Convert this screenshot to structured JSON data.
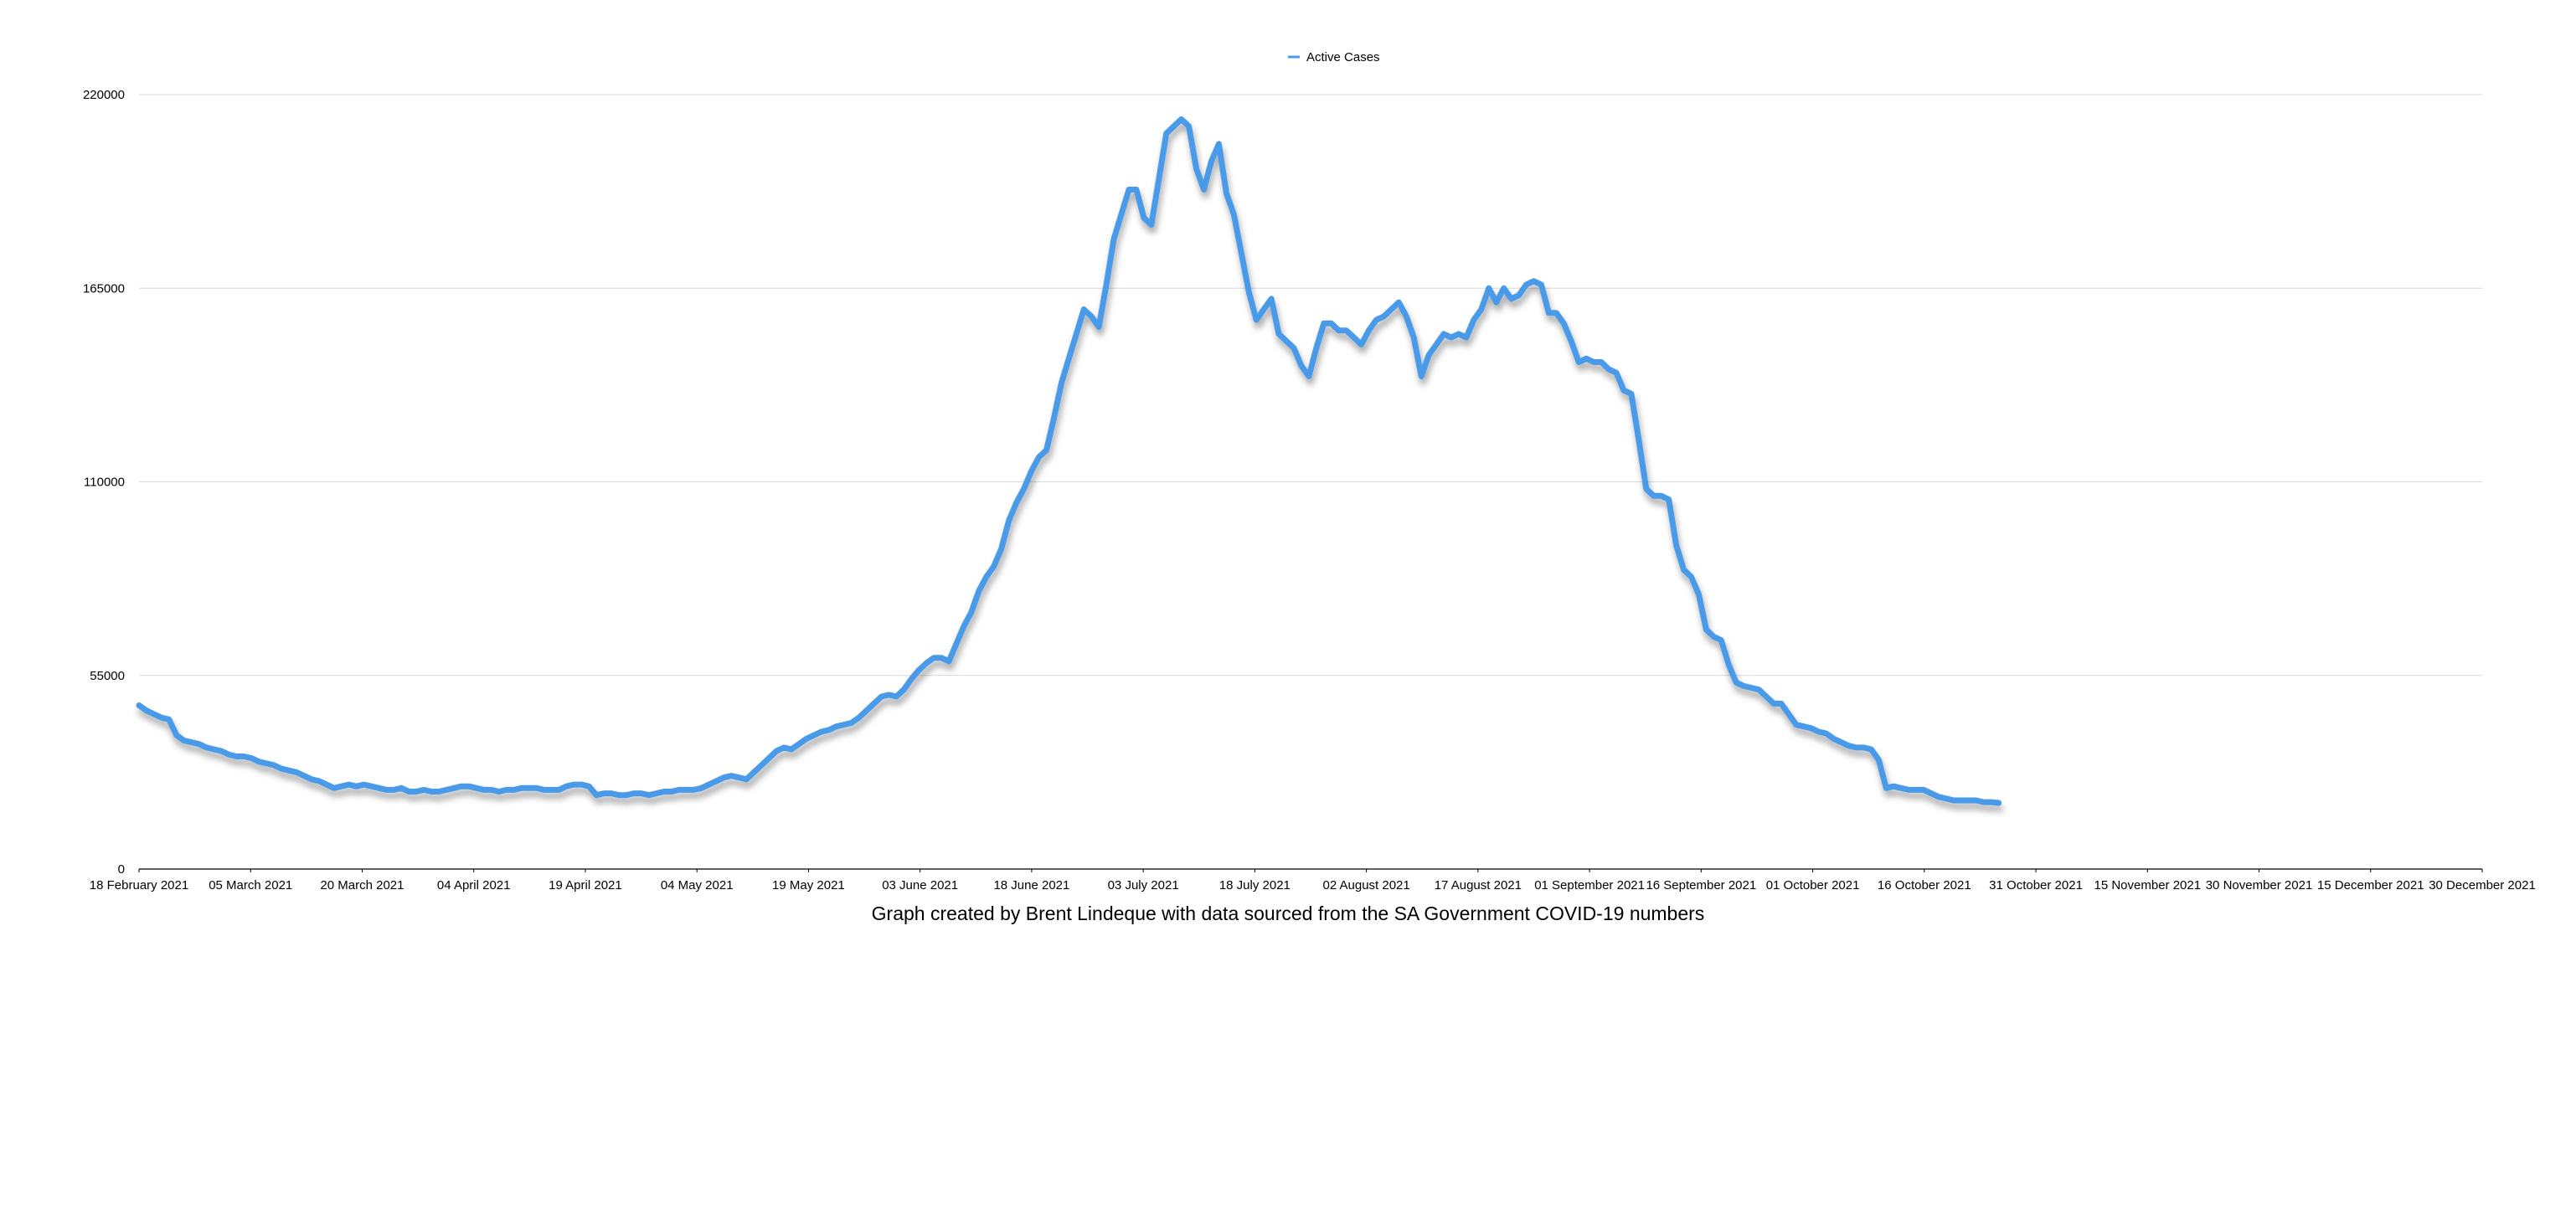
{
  "chart_data": {
    "type": "line",
    "legend": {
      "position": "top-center",
      "entries": [
        "Active Cases"
      ]
    },
    "series": [
      {
        "name": "Active Cases",
        "color": "#4a9ae8",
        "start": "18 February 2021",
        "end": "26 October 2021",
        "values": [
          46500,
          45000,
          44000,
          43000,
          42500,
          38000,
          36500,
          36000,
          35500,
          34500,
          34000,
          33500,
          32500,
          32000,
          32000,
          31500,
          30500,
          30000,
          29500,
          28500,
          28000,
          27500,
          26500,
          25500,
          25000,
          24000,
          23000,
          23500,
          24000,
          23500,
          24000,
          23500,
          23000,
          22500,
          22500,
          23000,
          22000,
          22000,
          22500,
          22000,
          22000,
          22500,
          23000,
          23500,
          23500,
          23000,
          22500,
          22500,
          22000,
          22500,
          22500,
          23000,
          23000,
          23000,
          22500,
          22500,
          22500,
          23500,
          24000,
          24000,
          23500,
          21000,
          21500,
          21500,
          21000,
          21000,
          21500,
          21500,
          21000,
          21500,
          22000,
          22000,
          22500,
          22500,
          22500,
          23000,
          24000,
          25000,
          26000,
          26500,
          26000,
          25500,
          27500,
          29500,
          31500,
          33500,
          34500,
          34000,
          35500,
          37000,
          38000,
          39000,
          39500,
          40500,
          41000,
          41500,
          43000,
          45000,
          47000,
          49000,
          49500,
          49000,
          51000,
          54000,
          56500,
          58500,
          60000,
          60000,
          59000,
          64000,
          69000,
          73000,
          79000,
          83000,
          86000,
          91000,
          99000,
          104000,
          108000,
          113000,
          117000,
          119000,
          128000,
          138000,
          145000,
          152000,
          159000,
          157000,
          154000,
          166000,
          179000,
          186000,
          193000,
          193000,
          185000,
          183000,
          196000,
          209000,
          211000,
          213000,
          211000,
          199000,
          193000,
          201000,
          206000,
          192000,
          186000,
          175000,
          164000,
          156000,
          159000,
          162000,
          152000,
          150000,
          148000,
          143000,
          140000,
          148000,
          155000,
          155000,
          153000,
          153000,
          151000,
          149000,
          153000,
          156000,
          157000,
          159000,
          161000,
          157000,
          151000,
          140000,
          146000,
          149000,
          152000,
          151000,
          152000,
          151000,
          156000,
          159000,
          165000,
          161000,
          165000,
          162000,
          163000,
          166000,
          167000,
          166000,
          158000,
          158000,
          155000,
          150000,
          144000,
          145000,
          144000,
          144000,
          142000,
          141000,
          136000,
          135000,
          122000,
          108000,
          106000,
          106000,
          105000,
          92000,
          85000,
          83000,
          78000,
          68000,
          66000,
          65000,
          58000,
          53000,
          52000,
          51500,
          51000,
          49000,
          47000,
          47000,
          44000,
          41000,
          40500,
          40000,
          39000,
          38500,
          37000,
          36000,
          35000,
          34500,
          34500,
          34000,
          31000,
          23000,
          23500,
          23000,
          22500,
          22500,
          22500,
          21500,
          20500,
          20000,
          19500,
          19500,
          19500,
          19500,
          19000,
          19000,
          18800
        ]
      }
    ],
    "x": {
      "min": "18 February 2021",
      "max": "30 December 2021",
      "tick_labels": [
        "18 February 2021",
        "05 March 2021",
        "20 March 2021",
        "04 April 2021",
        "19 April 2021",
        "04 May 2021",
        "19 May 2021",
        "03 June 2021",
        "18 June 2021",
        "03 July 2021",
        "18 July 2021",
        "02 August 2021",
        "17 August 2021",
        "01 September 2021",
        "16 September 2021",
        "01 October 2021",
        "16 October 2021",
        "31 October 2021",
        "15 November 2021",
        "30 November 2021",
        "15 December 2021",
        "30 December 2021"
      ]
    },
    "y": {
      "min": 0,
      "max": 220000,
      "ticks": [
        0,
        55000,
        110000,
        165000,
        220000
      ],
      "tick_labels": [
        "0",
        "55000",
        "110000",
        "165000",
        "220000"
      ],
      "grid": true
    },
    "caption": "Graph created by Brent Lindeque with data sourced from the SA Government COVID-19 numbers"
  }
}
